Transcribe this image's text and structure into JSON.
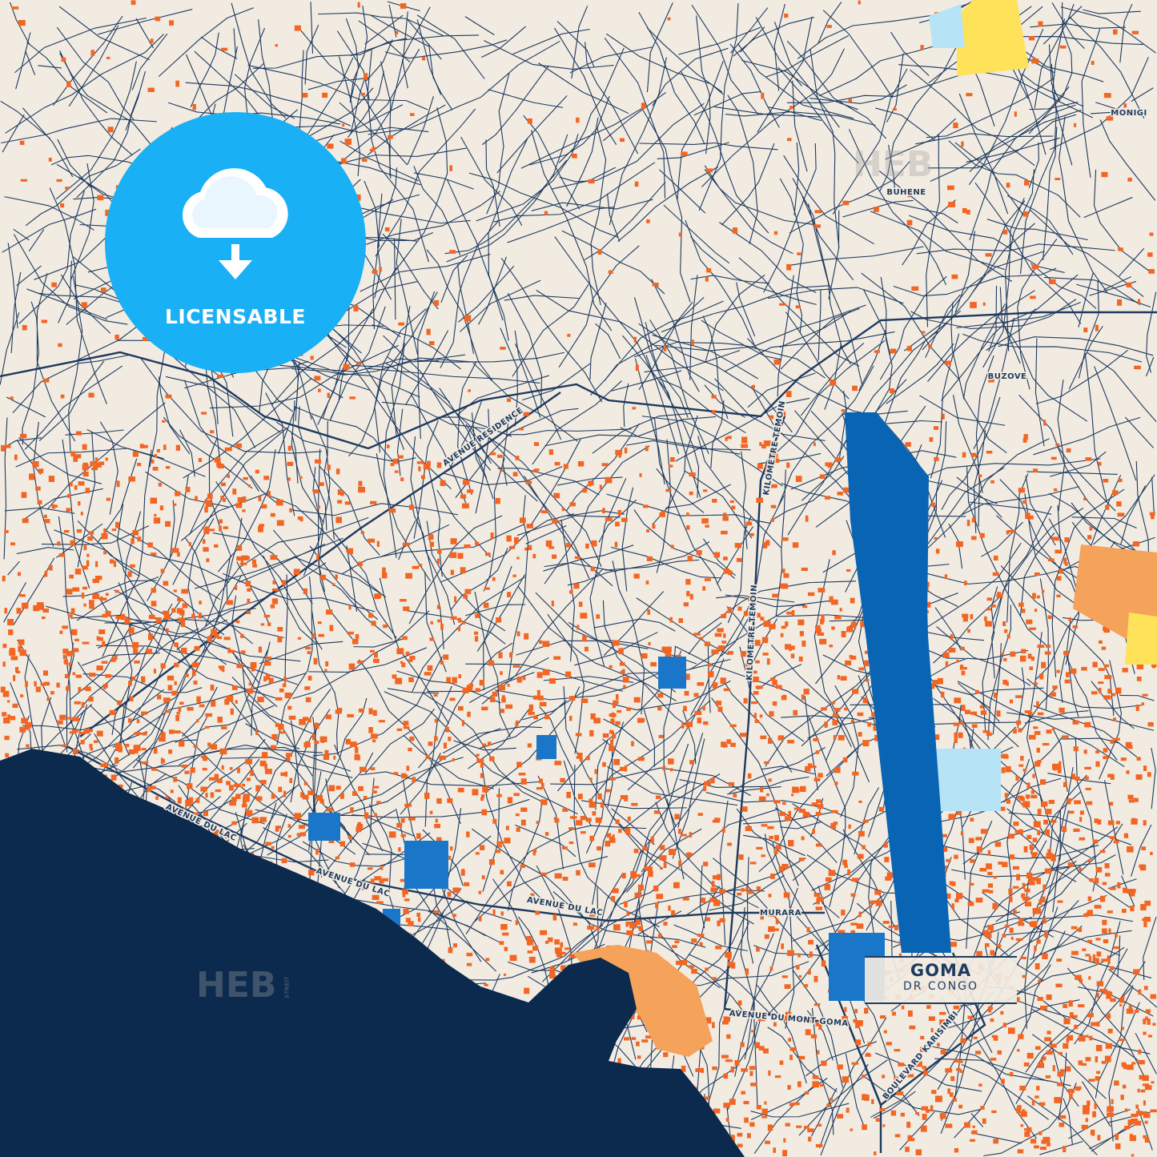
{
  "badge": {
    "label": "LICENSABLE",
    "icon": "cloud-download-icon",
    "color": "#1ab0f5"
  },
  "title": {
    "city": "GOMA",
    "country": "DR CONGO"
  },
  "watermark": {
    "text": "HEB",
    "suffix": "STREIT"
  },
  "places": [
    "MONIGI",
    "BUHENE",
    "BUZOVE",
    "MURARA"
  ],
  "streets": [
    "AVENUE RESIDENCE",
    "KILOMETRE TEMOIN",
    "KILOMETRE TEMOIN",
    "AVENUE DU LAC",
    "AVENUE DU LAC",
    "AVENUE DU LAC",
    "AVENUE DU MONT GOMA",
    "BOULEVARD KARISIMBI"
  ],
  "colors": {
    "land": "#f1ebe1",
    "water": "#0c2a4d",
    "roads": "#1e3a5f",
    "buildings": "#f26522",
    "runway": "#0a64b4",
    "sand": "#f5a25a",
    "yellow": "#fde25a",
    "light_blue": "#b7e3f7"
  }
}
